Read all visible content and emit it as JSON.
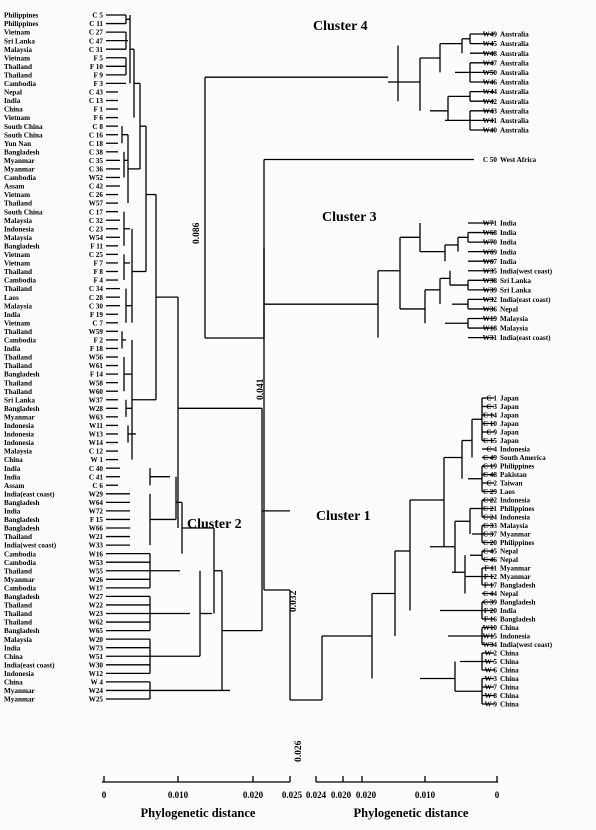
{
  "clusters": {
    "c1": "Cluster 1",
    "c2": "Cluster 2",
    "c3": "Cluster 3",
    "c4": "Cluster 4"
  },
  "distances": {
    "d1": "0.086",
    "d2": "0.041",
    "d3": "0.032",
    "d4": "0.026"
  },
  "axes": {
    "left": {
      "title": "Phylogenetic distance",
      "ticks": [
        "0",
        "0.010",
        "0.020",
        "0.025"
      ]
    },
    "right": {
      "title": "Phylogenetic distance",
      "ticks": [
        "0.024",
        "0.020",
        "0.020",
        "0.010",
        "0"
      ]
    }
  },
  "left_leaves": [
    {
      "country": "Philippines",
      "id": "C 5"
    },
    {
      "country": "Philippines",
      "id": "C 11"
    },
    {
      "country": "Vietnam",
      "id": "C 27"
    },
    {
      "country": "Sri Lanka",
      "id": "C 47"
    },
    {
      "country": "Malaysia",
      "id": "C 31"
    },
    {
      "country": "Vietnam",
      "id": "F 5"
    },
    {
      "country": "Thailand",
      "id": "F 10"
    },
    {
      "country": "Thailand",
      "id": "F 9"
    },
    {
      "country": "Cambodia",
      "id": "F 3"
    },
    {
      "country": "Nepal",
      "id": "C 43"
    },
    {
      "country": "India",
      "id": "C 13"
    },
    {
      "country": "China",
      "id": "F 1"
    },
    {
      "country": "Vietnam",
      "id": "F 6"
    },
    {
      "country": "South China",
      "id": "C 8"
    },
    {
      "country": "South China",
      "id": "C 16"
    },
    {
      "country": "Yun Nan",
      "id": "C 18"
    },
    {
      "country": "Bangladesh",
      "id": "C 38"
    },
    {
      "country": "Myanmar",
      "id": "C 35"
    },
    {
      "country": "Myanmar",
      "id": "C 36"
    },
    {
      "country": "Cambodia",
      "id": "W52"
    },
    {
      "country": "Assam",
      "id": "C 42"
    },
    {
      "country": "Vietnam",
      "id": "C 26"
    },
    {
      "country": "Thailand",
      "id": "W57"
    },
    {
      "country": "South China",
      "id": "C 17"
    },
    {
      "country": "Malaysia",
      "id": "C 32"
    },
    {
      "country": "Indonesia",
      "id": "C 23"
    },
    {
      "country": "Malaysia",
      "id": "W54"
    },
    {
      "country": "Bangladesh",
      "id": "F 11"
    },
    {
      "country": "Vietnam",
      "id": "C 25"
    },
    {
      "country": "Vietnam",
      "id": "F 7"
    },
    {
      "country": "Thailand",
      "id": "F 8"
    },
    {
      "country": "Cambodia",
      "id": "F 4"
    },
    {
      "country": "Thailand",
      "id": "C 34"
    },
    {
      "country": "Laos",
      "id": "C 28"
    },
    {
      "country": "Malaysia",
      "id": "C 30"
    },
    {
      "country": "India",
      "id": "F 19"
    },
    {
      "country": "Vietnam",
      "id": "C 7"
    },
    {
      "country": "Thailand",
      "id": "W59"
    },
    {
      "country": "Cambodia",
      "id": "F 2"
    },
    {
      "country": "India",
      "id": "F 18"
    },
    {
      "country": "Thailand",
      "id": "W56"
    },
    {
      "country": "Thailand",
      "id": "W61"
    },
    {
      "country": "Bangladesh",
      "id": "F 14"
    },
    {
      "country": "Thailand",
      "id": "W58"
    },
    {
      "country": "Thailand",
      "id": "W60"
    },
    {
      "country": "Sri Lanka",
      "id": "W37"
    },
    {
      "country": "Bangladesh",
      "id": "W28"
    },
    {
      "country": "Myanmar",
      "id": "W63"
    },
    {
      "country": "Indonesia",
      "id": "W11"
    },
    {
      "country": "Indonesia",
      "id": "W13"
    },
    {
      "country": "Indonesia",
      "id": "W14"
    },
    {
      "country": "Malaysia",
      "id": "C 12"
    },
    {
      "country": "China",
      "id": "W 1"
    },
    {
      "country": "India",
      "id": "C 40"
    },
    {
      "country": "India",
      "id": "C 41"
    },
    {
      "country": "Assam",
      "id": "C 6"
    },
    {
      "country": "India(east coast)",
      "id": "W29"
    },
    {
      "country": "Bangladesh",
      "id": "W64"
    },
    {
      "country": "India",
      "id": "W72"
    },
    {
      "country": "Bangladesh",
      "id": "F 15"
    },
    {
      "country": "Bangladesh",
      "id": "W66"
    },
    {
      "country": "Thailand",
      "id": "W21"
    },
    {
      "country": "India(west coast)",
      "id": "W33"
    },
    {
      "country": "Cambodia",
      "id": "W16"
    },
    {
      "country": "Cambodia",
      "id": "W53"
    },
    {
      "country": "Thailand",
      "id": "W55"
    },
    {
      "country": "Myanmar",
      "id": "W26"
    },
    {
      "country": "Cambodia",
      "id": "W17"
    },
    {
      "country": "Bangladesh",
      "id": "W27"
    },
    {
      "country": "Thailand",
      "id": "W22"
    },
    {
      "country": "Thailand",
      "id": "W23"
    },
    {
      "country": "Thailand",
      "id": "W62"
    },
    {
      "country": "Bangladesh",
      "id": "W65"
    },
    {
      "country": "Malaysia",
      "id": "W20"
    },
    {
      "country": "India",
      "id": "W73"
    },
    {
      "country": "China",
      "id": "W51"
    },
    {
      "country": "India(east coast)",
      "id": "W30"
    },
    {
      "country": "Indonesia",
      "id": "W12"
    },
    {
      "country": "China",
      "id": "W 4"
    },
    {
      "country": "Myanmar",
      "id": "W24"
    },
    {
      "country": "Myanmar",
      "id": "W25"
    }
  ],
  "cluster4_leaves": [
    {
      "id": "W49",
      "country": "Australia"
    },
    {
      "id": "W45",
      "country": "Australia"
    },
    {
      "id": "W48",
      "country": "Australia"
    },
    {
      "id": "W47",
      "country": "Australia"
    },
    {
      "id": "W50",
      "country": "Australia"
    },
    {
      "id": "W46",
      "country": "Australia"
    },
    {
      "id": "W44",
      "country": "Australia"
    },
    {
      "id": "W42",
      "country": "Australia"
    },
    {
      "id": "W43",
      "country": "Australia"
    },
    {
      "id": "W41",
      "country": "Australia"
    },
    {
      "id": "W40",
      "country": "Australia"
    }
  ],
  "outgroup_leaf": {
    "id": "C 50",
    "country": "West Africa"
  },
  "cluster3_leaves": [
    {
      "id": "W71",
      "country": "India"
    },
    {
      "id": "W68",
      "country": "India"
    },
    {
      "id": "W70",
      "country": "India"
    },
    {
      "id": "W69",
      "country": "India"
    },
    {
      "id": "W67",
      "country": "India"
    },
    {
      "id": "W35",
      "country": "India(west coast)"
    },
    {
      "id": "W38",
      "country": "Sri Lanka"
    },
    {
      "id": "W39",
      "country": "Sri Lanka"
    },
    {
      "id": "W32",
      "country": "India(east coast)"
    },
    {
      "id": "W36",
      "country": "Nepal"
    },
    {
      "id": "W19",
      "country": "Malaysia"
    },
    {
      "id": "W18",
      "country": "Malaysia"
    },
    {
      "id": "W31",
      "country": "India(east coast)"
    }
  ],
  "cluster1_leaves": [
    {
      "id": "C 1",
      "country": "Japan"
    },
    {
      "id": "C 3",
      "country": "Japan"
    },
    {
      "id": "C 14",
      "country": "Japan"
    },
    {
      "id": "C 10",
      "country": "Japan"
    },
    {
      "id": "C 9",
      "country": "Japan"
    },
    {
      "id": "C 15",
      "country": "Japan"
    },
    {
      "id": "C 4",
      "country": "Indonesia"
    },
    {
      "id": "C 49",
      "country": "South America"
    },
    {
      "id": "C 19",
      "country": "Philippines"
    },
    {
      "id": "C 48",
      "country": "Pakistan"
    },
    {
      "id": "C 2",
      "country": "Taiwan"
    },
    {
      "id": "C 29",
      "country": "Laos"
    },
    {
      "id": "C 22",
      "country": "Indonesia"
    },
    {
      "id": "C 21",
      "country": "Philippines"
    },
    {
      "id": "C 24",
      "country": "Indonesia"
    },
    {
      "id": "C 33",
      "country": "Malaysia"
    },
    {
      "id": "C 37",
      "country": "Myanmar"
    },
    {
      "id": "C 20",
      "country": "Philippines"
    },
    {
      "id": "C 45",
      "country": "Nepal"
    },
    {
      "id": "C 46",
      "country": "Nepal"
    },
    {
      "id": "F 11",
      "country": "Myanmar"
    },
    {
      "id": "F 12",
      "country": "Myanmar"
    },
    {
      "id": "F 17",
      "country": "Bangladesh"
    },
    {
      "id": "C 44",
      "country": "Nepal"
    },
    {
      "id": "C 39",
      "country": "Bangladesh"
    },
    {
      "id": "F 20",
      "country": "India"
    },
    {
      "id": "F 16",
      "country": "Bangladesh"
    },
    {
      "id": "W10",
      "country": "China"
    },
    {
      "id": "W15",
      "country": "Indonesia"
    },
    {
      "id": "W34",
      "country": "India(west coast)"
    },
    {
      "id": "W 2",
      "country": "China"
    },
    {
      "id": "W 5",
      "country": "China"
    },
    {
      "id": "W 6",
      "country": "China"
    },
    {
      "id": "W 3",
      "country": "China"
    },
    {
      "id": "W 7",
      "country": "China"
    },
    {
      "id": "W 8",
      "country": "China"
    },
    {
      "id": "W 9",
      "country": "China"
    }
  ]
}
